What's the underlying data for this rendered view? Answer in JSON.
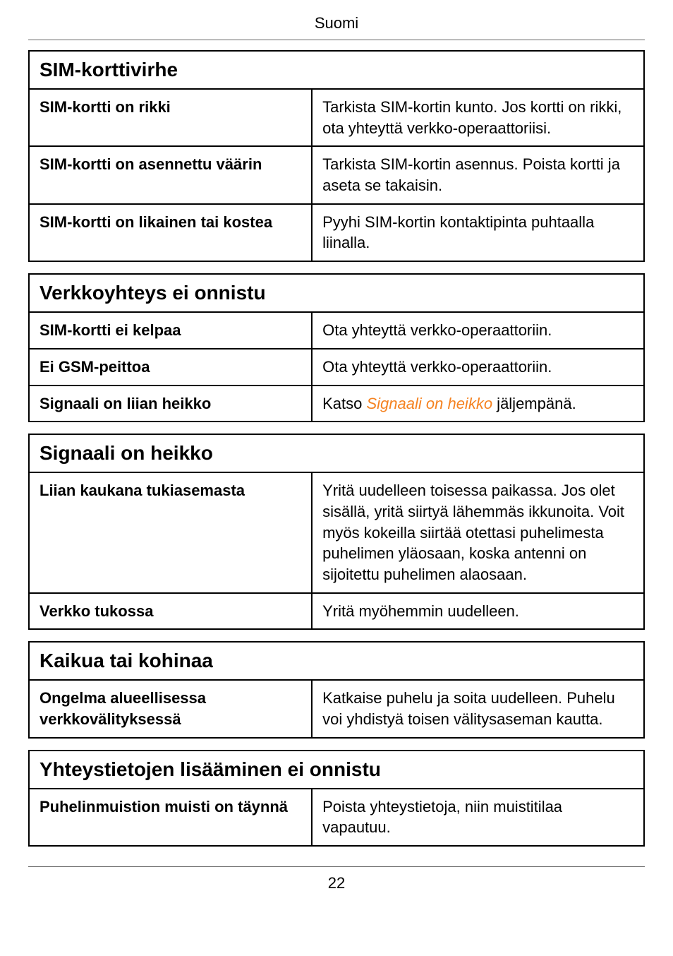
{
  "page": {
    "header": "Suomi",
    "number": "22"
  },
  "colors": {
    "link": "#f58220",
    "border": "#000000",
    "rule": "#666666",
    "text": "#000000",
    "background": "#ffffff"
  },
  "sections": [
    {
      "title": "SIM-korttivirhe",
      "rows": [
        {
          "left": "SIM-kortti on rikki",
          "right": "Tarkista SIM-kortin kunto. Jos kortti on rikki, ota yhteyttä verkko-operaattoriisi."
        },
        {
          "left": "SIM-kortti on asennettu väärin",
          "right": "Tarkista SIM-kortin asennus. Poista kortti ja aseta se takaisin."
        },
        {
          "left": "SIM-kortti on likainen tai kostea",
          "right": "Pyyhi SIM-kortin kontaktipinta puhtaalla liinalla."
        }
      ]
    },
    {
      "title": "Verkkoyhteys ei onnistu",
      "rows": [
        {
          "left": "SIM-kortti ei kelpaa",
          "right": "Ota yhteyttä verkko-operaattoriin."
        },
        {
          "left": "Ei GSM-peittoa",
          "right": "Ota yhteyttä verkko-operaattoriin."
        },
        {
          "left": "Signaali on liian heikko",
          "right_prefix": "Katso ",
          "right_link": "Signaali on heikko",
          "right_suffix": " jäljempänä."
        }
      ]
    },
    {
      "title": "Signaali on heikko",
      "rows": [
        {
          "left": "Liian kaukana tukiasemasta",
          "right": "Yritä uudelleen toisessa paikassa. Jos olet sisällä, yritä siirtyä lähemmäs ikkunoita. Voit myös kokeilla siirtää otettasi puhelimesta puhelimen yläosaan, koska antenni on sijoitettu puhelimen alaosaan."
        },
        {
          "left": "Verkko tukossa",
          "right": "Yritä myöhemmin uudelleen."
        }
      ]
    },
    {
      "title": "Kaikua tai kohinaa",
      "rows": [
        {
          "left": "Ongelma alueellisessa verkkovälityksessä",
          "right": "Katkaise puhelu ja soita uudelleen. Puhelu voi yhdistyä toisen välitysaseman kautta."
        }
      ]
    },
    {
      "title": "Yhteystietojen lisääminen ei onnistu",
      "rows": [
        {
          "left": "Puhelinmuistion muisti on täynnä",
          "right": "Poista yhteystietoja, niin muistitilaa vapautuu."
        }
      ]
    }
  ]
}
